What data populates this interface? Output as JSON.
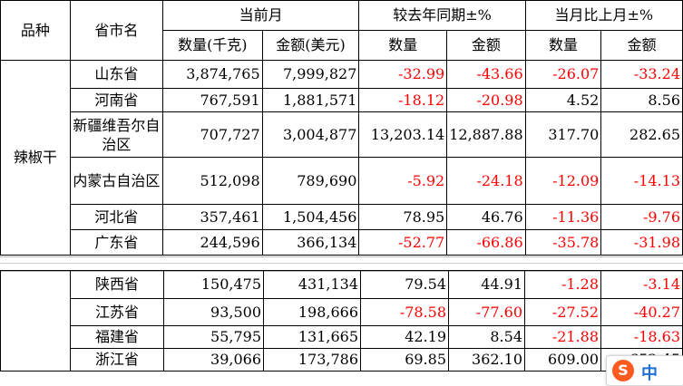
{
  "header": {
    "variety": "品种",
    "province": "省市名",
    "current_month": "当前月",
    "yoy": "较去年同期±%",
    "mom": "当月比上月±%",
    "qty_kg": "数量(千克)",
    "amount_usd": "金额(美元)",
    "qty": "数量",
    "amount": "金额"
  },
  "category": "辣椒干",
  "rows_top": [
    {
      "province": "山东省",
      "qty": "3,874,765",
      "amt": "7,999,827",
      "yoy_qty": "-32.99",
      "yoy_amt": "-43.66",
      "mom_qty": "-26.07",
      "mom_amt": "-33.24"
    },
    {
      "province": "河南省",
      "qty": "767,591",
      "amt": "1,881,571",
      "yoy_qty": "-18.12",
      "yoy_amt": "-20.98",
      "mom_qty": "4.52",
      "mom_amt": "8.56"
    },
    {
      "province": "新疆维吾尔自治区",
      "qty": "707,727",
      "amt": "3,004,877",
      "yoy_qty": "13,203.14",
      "yoy_amt": "12,887.88",
      "mom_qty": "317.70",
      "mom_amt": "282.65"
    },
    {
      "province": "内蒙古自治区",
      "qty": "512,098",
      "amt": "789,690",
      "yoy_qty": "-5.92",
      "yoy_amt": "-24.18",
      "mom_qty": "-12.09",
      "mom_amt": "-14.13"
    },
    {
      "province": "河北省",
      "qty": "357,461",
      "amt": "1,504,456",
      "yoy_qty": "78.95",
      "yoy_amt": "46.76",
      "mom_qty": "-11.36",
      "mom_amt": "-9.76"
    },
    {
      "province": "广东省",
      "qty": "244,596",
      "amt": "366,134",
      "yoy_qty": "-52.77",
      "yoy_amt": "-66.86",
      "mom_qty": "-35.78",
      "mom_amt": "-31.98"
    }
  ],
  "rows_bottom": [
    {
      "province": "陕西省",
      "qty": "150,475",
      "amt": "431,134",
      "yoy_qty": "79.54",
      "yoy_amt": "44.91",
      "mom_qty": "-1.28",
      "mom_amt": "-3.14"
    },
    {
      "province": "江苏省",
      "qty": "93,500",
      "amt": "198,666",
      "yoy_qty": "-78.58",
      "yoy_amt": "-77.60",
      "mom_qty": "-27.52",
      "mom_amt": "-40.27"
    },
    {
      "province": "福建省",
      "qty": "55,795",
      "amt": "131,665",
      "yoy_qty": "42.19",
      "yoy_amt": "8.54",
      "mom_qty": "-21.88",
      "mom_amt": "-18.63"
    },
    {
      "province": "浙江省",
      "qty": "39,066",
      "amt": "173,786",
      "yoy_qty": "69.85",
      "yoy_amt": "362.10",
      "mom_qty": "609.00",
      "mom_amt": "652.45"
    }
  ],
  "ime": {
    "logo": "S",
    "mode": "中"
  },
  "colors": {
    "negative": "#ff0000",
    "grid": "#000000",
    "ime_logo": "#ff5a1f"
  }
}
